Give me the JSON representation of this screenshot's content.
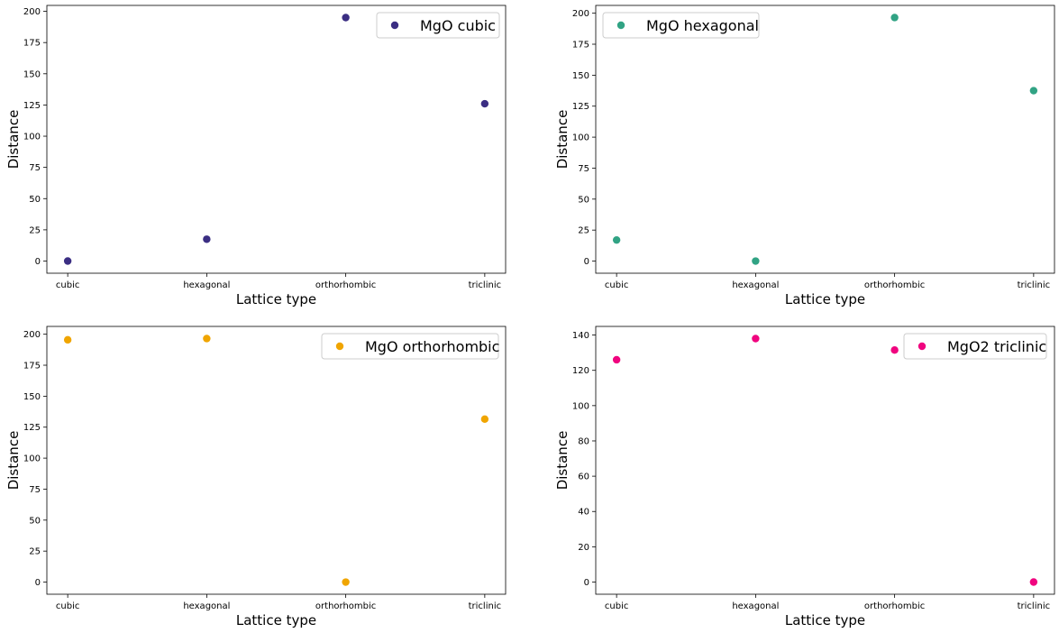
{
  "chart_data": [
    {
      "type": "scatter",
      "categories": [
        "cubic",
        "hexagonal",
        "orthorhombic",
        "triclinic"
      ],
      "series": [
        {
          "name": "MgO cubic",
          "values": [
            0,
            17.5,
            195,
            126
          ]
        }
      ],
      "xlabel": "Lattice type",
      "ylabel": "Distance",
      "ylim": [
        -9.75,
        204.75
      ],
      "yticks": [
        0,
        25,
        50,
        75,
        100,
        125,
        150,
        175,
        200
      ],
      "color": "#3b2e83",
      "legend": "upper right",
      "grid": false
    },
    {
      "type": "scatter",
      "categories": [
        "cubic",
        "hexagonal",
        "orthorhombic",
        "triclinic"
      ],
      "series": [
        {
          "name": "MgO hexagonal",
          "values": [
            17,
            0,
            196.5,
            137.5
          ]
        }
      ],
      "xlabel": "Lattice type",
      "ylabel": "Distance",
      "ylim": [
        -9.8,
        206.3
      ],
      "yticks": [
        0,
        25,
        50,
        75,
        100,
        125,
        150,
        175,
        200
      ],
      "color": "#31a384",
      "legend": "upper left",
      "grid": false
    },
    {
      "type": "scatter",
      "categories": [
        "cubic",
        "hexagonal",
        "orthorhombic",
        "triclinic"
      ],
      "series": [
        {
          "name": "MgO orthorhombic",
          "values": [
            195.5,
            196.5,
            0,
            131.5
          ]
        }
      ],
      "xlabel": "Lattice type",
      "ylabel": "Distance",
      "ylim": [
        -9.8,
        206.3
      ],
      "yticks": [
        0,
        25,
        50,
        75,
        100,
        125,
        150,
        175,
        200
      ],
      "color": "#f0a500",
      "legend": "upper right",
      "grid": false
    },
    {
      "type": "scatter",
      "categories": [
        "cubic",
        "hexagonal",
        "orthorhombic",
        "triclinic"
      ],
      "series": [
        {
          "name": "MgO2 triclinic",
          "values": [
            126,
            138,
            131.5,
            0
          ]
        }
      ],
      "xlabel": "Lattice type",
      "ylabel": "Distance",
      "ylim": [
        -6.9,
        144.9
      ],
      "yticks": [
        0,
        20,
        40,
        60,
        80,
        100,
        120,
        140
      ],
      "color": "#f0047f",
      "legend": "upper right",
      "grid": false
    }
  ]
}
